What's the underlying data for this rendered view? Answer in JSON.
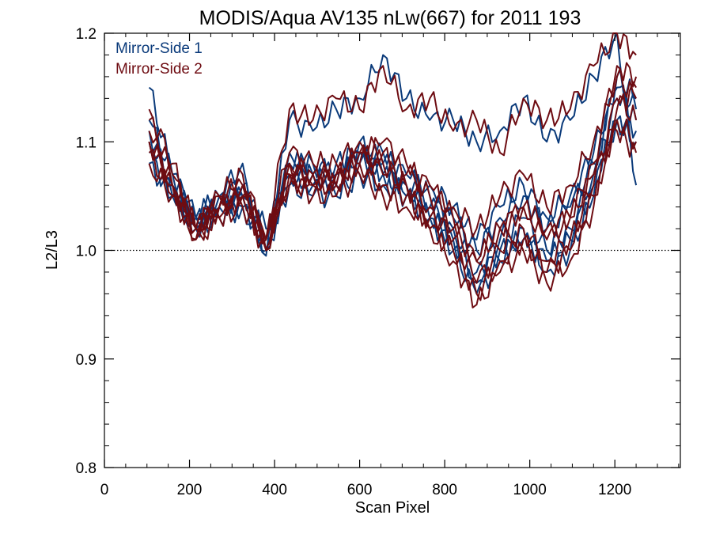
{
  "chart_data": {
    "type": "line",
    "title": "MODIS/Aqua AV135 nLw(667) for 2011 193",
    "xlabel": "Scan Pixel",
    "ylabel": "L2/L3",
    "xlim": [
      0,
      1354
    ],
    "ylim": [
      0.8,
      1.2
    ],
    "xticks": [
      0,
      200,
      400,
      600,
      800,
      1000,
      1200
    ],
    "xtick_labels": [
      "0",
      "200",
      "400",
      "600",
      "800",
      "1000",
      "1200"
    ],
    "yticks": [
      0.8,
      0.9,
      1.0,
      1.1,
      1.2
    ],
    "ytick_labels": [
      "0.8",
      "0.9",
      "1.0",
      "1.1",
      "1.2"
    ],
    "reference_line": {
      "y": 1.0,
      "style": "dotted"
    },
    "grid": false,
    "legend_position": "top-left",
    "x_points": [
      105,
      160,
      215,
      270,
      325,
      380,
      435,
      490,
      545,
      600,
      655,
      710,
      765,
      820,
      875,
      930,
      985,
      1040,
      1095,
      1150,
      1205,
      1250
    ],
    "series": [
      {
        "name": "Mirror-Side 1",
        "color": "#0a3a7a",
        "group": 1,
        "values": [
          1.15,
          1.07,
          1.03,
          1.05,
          1.08,
          0.995,
          1.12,
          1.11,
          1.13,
          1.14,
          1.18,
          1.14,
          1.12,
          1.12,
          1.1,
          1.11,
          1.14,
          1.1,
          1.12,
          1.16,
          1.2,
          1.06
        ]
      },
      {
        "name": "Mirror-Side 1",
        "color": "#0a3a7a",
        "group": 1,
        "values": [
          1.1,
          1.06,
          1.02,
          1.04,
          1.05,
          1.0,
          1.09,
          1.07,
          1.06,
          1.09,
          1.07,
          1.06,
          1.03,
          1.0,
          0.96,
          0.99,
          1.02,
          0.98,
          1.0,
          1.05,
          1.14,
          1.12
        ]
      },
      {
        "name": "Mirror-Side 1",
        "color": "#0a3a7a",
        "group": 1,
        "values": [
          1.12,
          1.07,
          1.03,
          1.05,
          1.06,
          1.01,
          1.08,
          1.08,
          1.07,
          1.1,
          1.08,
          1.07,
          1.05,
          1.02,
          0.98,
          1.01,
          1.03,
          1.0,
          1.02,
          1.07,
          1.16,
          1.14
        ]
      },
      {
        "name": "Mirror-Side 1",
        "color": "#0a3a7a",
        "group": 1,
        "values": [
          1.08,
          1.05,
          1.02,
          1.03,
          1.04,
          1.0,
          1.06,
          1.05,
          1.05,
          1.07,
          1.06,
          1.05,
          1.04,
          1.03,
          1.0,
          1.03,
          1.05,
          1.02,
          1.04,
          1.08,
          1.12,
          1.1
        ]
      },
      {
        "name": "Mirror-Side 1",
        "color": "#0a3a7a",
        "group": 1,
        "values": [
          1.11,
          1.06,
          1.03,
          1.04,
          1.05,
          1.02,
          1.07,
          1.06,
          1.08,
          1.08,
          1.09,
          1.06,
          1.06,
          1.04,
          1.01,
          1.04,
          1.06,
          1.03,
          1.05,
          1.09,
          1.15,
          1.13
        ]
      },
      {
        "name": "Mirror-Side 1",
        "color": "#0a3a7a",
        "group": 1,
        "values": [
          1.09,
          1.05,
          1.02,
          1.04,
          1.04,
          1.01,
          1.06,
          1.07,
          1.06,
          1.09,
          1.07,
          1.05,
          1.03,
          1.01,
          0.97,
          1.0,
          1.01,
          0.99,
          1.01,
          1.06,
          1.12,
          1.11
        ]
      },
      {
        "name": "Mirror-Side 2",
        "color": "#6e0c12",
        "group": 2,
        "values": [
          1.13,
          1.08,
          1.02,
          1.05,
          1.07,
          1.01,
          1.13,
          1.12,
          1.14,
          1.13,
          1.17,
          1.13,
          1.14,
          1.11,
          1.12,
          1.09,
          1.14,
          1.12,
          1.13,
          1.17,
          1.2,
          1.18
        ]
      },
      {
        "name": "Mirror-Side 2",
        "color": "#6e0c12",
        "group": 2,
        "values": [
          1.1,
          1.06,
          1.01,
          1.04,
          1.05,
          1.0,
          1.08,
          1.06,
          1.07,
          1.09,
          1.07,
          1.06,
          1.02,
          0.99,
          0.95,
          0.98,
          1.0,
          0.97,
          0.99,
          1.04,
          1.13,
          1.15
        ]
      },
      {
        "name": "Mirror-Side 2",
        "color": "#6e0c12",
        "group": 2,
        "values": [
          1.12,
          1.07,
          1.02,
          1.05,
          1.06,
          1.01,
          1.09,
          1.08,
          1.08,
          1.1,
          1.09,
          1.07,
          1.06,
          1.03,
          0.99,
          1.02,
          1.04,
          1.01,
          1.03,
          1.08,
          1.17,
          1.16
        ]
      },
      {
        "name": "Mirror-Side 2",
        "color": "#6e0c12",
        "group": 2,
        "values": [
          1.08,
          1.05,
          1.01,
          1.03,
          1.04,
          1.0,
          1.07,
          1.05,
          1.05,
          1.07,
          1.05,
          1.04,
          1.03,
          1.02,
          0.99,
          1.02,
          1.04,
          1.02,
          1.03,
          1.07,
          1.11,
          1.09
        ]
      },
      {
        "name": "Mirror-Side 2",
        "color": "#6e0c12",
        "group": 2,
        "values": [
          1.11,
          1.06,
          1.02,
          1.04,
          1.05,
          1.01,
          1.07,
          1.07,
          1.07,
          1.08,
          1.1,
          1.08,
          1.05,
          1.04,
          1.02,
          1.05,
          1.07,
          1.04,
          1.06,
          1.1,
          1.16,
          1.14
        ]
      },
      {
        "name": "Mirror-Side 2",
        "color": "#6e0c12",
        "group": 2,
        "values": [
          1.09,
          1.05,
          1.02,
          1.03,
          1.05,
          1.01,
          1.06,
          1.06,
          1.06,
          1.08,
          1.06,
          1.05,
          1.02,
          1.0,
          0.96,
          0.99,
          1.01,
          0.98,
          1.0,
          1.05,
          1.12,
          1.1
        ]
      },
      {
        "name": "Mirror-Side 2",
        "color": "#6e0c12",
        "group": 2,
        "values": [
          1.1,
          1.06,
          1.02,
          1.04,
          1.06,
          1.0,
          1.08,
          1.07,
          1.06,
          1.09,
          1.08,
          1.06,
          1.04,
          1.01,
          0.97,
          1.0,
          1.02,
          0.99,
          1.01,
          1.06,
          1.14,
          1.12
        ]
      }
    ],
    "legend": [
      {
        "label": "Mirror-Side 1",
        "color": "#0a3a7a"
      },
      {
        "label": "Mirror-Side 2",
        "color": "#6e0c12"
      }
    ]
  }
}
